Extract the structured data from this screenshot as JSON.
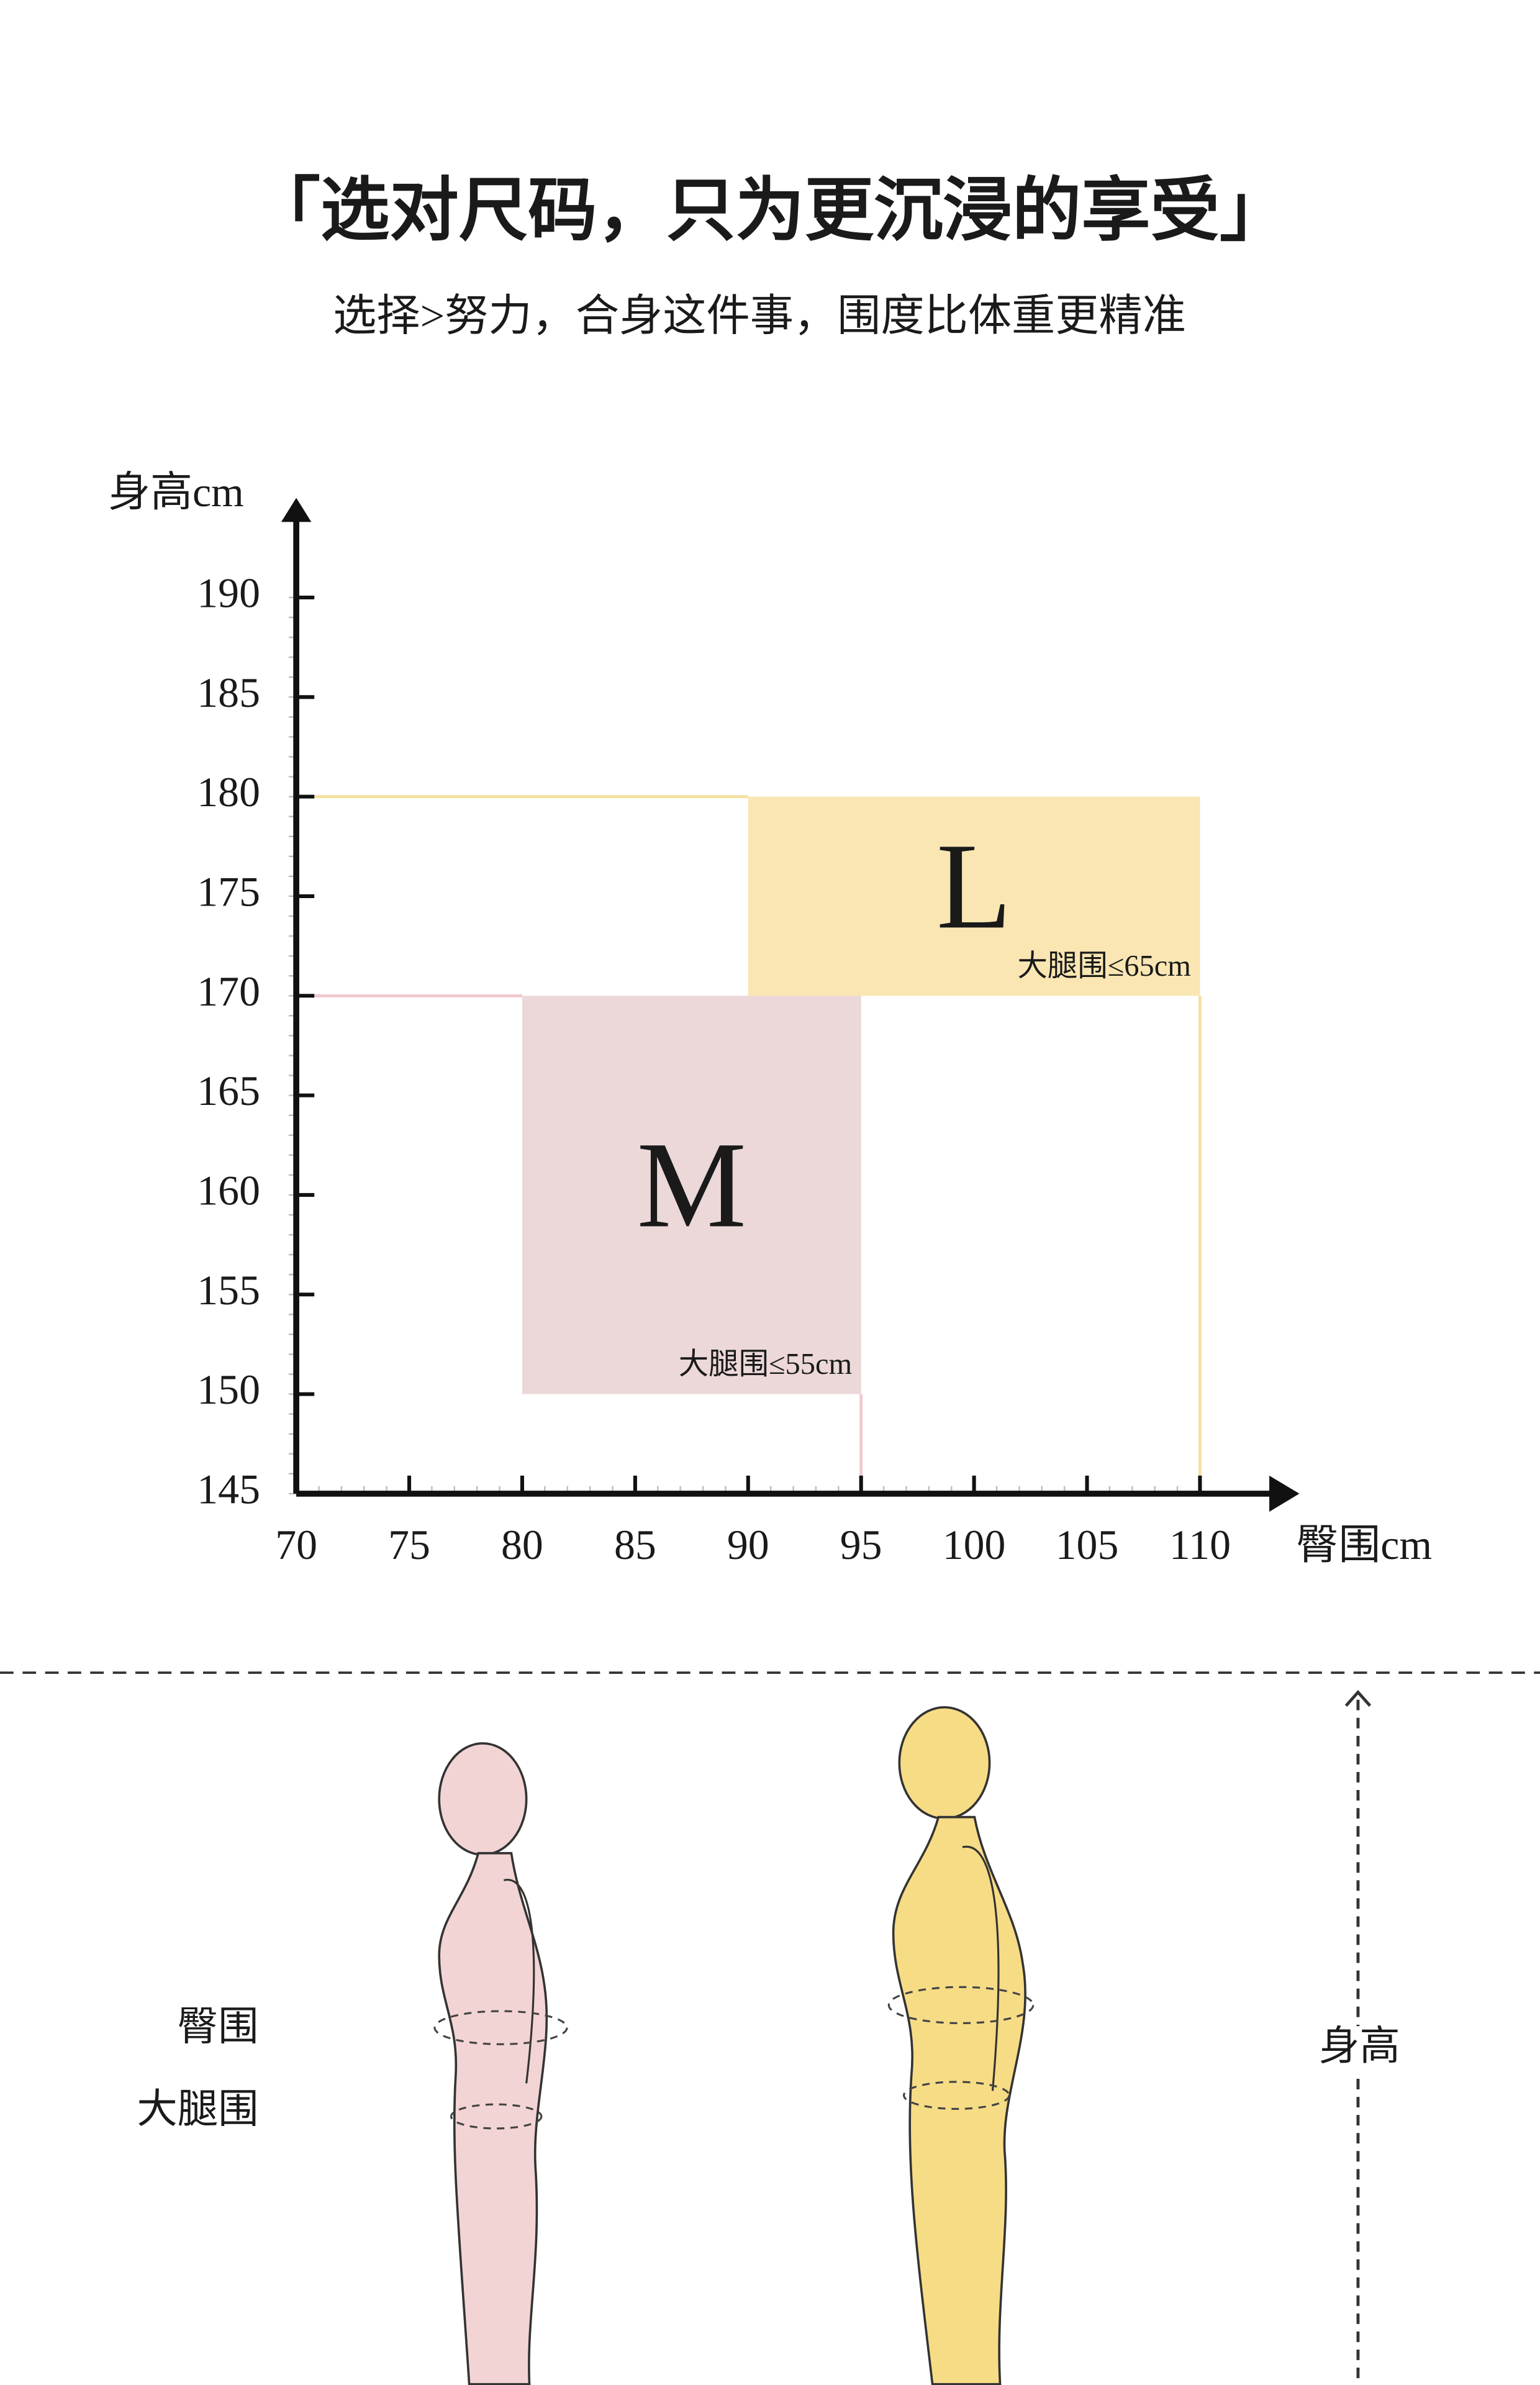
{
  "header": {
    "title": "「选对尺码，只为更沉浸的享受」",
    "subtitle": "选择>努力，合身这件事，围度比体重更精准"
  },
  "chart_data": {
    "type": "region",
    "x_label": "臀围cm",
    "y_label": "身高cm",
    "xlim": [
      70,
      114
    ],
    "ylim": [
      145,
      195
    ],
    "xticks": [
      70,
      75,
      80,
      85,
      90,
      95,
      100,
      105,
      110
    ],
    "yticks": [
      145,
      150,
      155,
      160,
      165,
      170,
      175,
      180,
      185,
      190
    ],
    "series": [
      {
        "name": "M",
        "color": "#ecd8d8",
        "line_color": "#f0c8cc",
        "x": [
          80,
          95
        ],
        "y": [
          150,
          170
        ],
        "note": "大腿围≤55cm"
      },
      {
        "name": "L",
        "color": "#f9e6b2",
        "line_color": "#f5dfa0",
        "x": [
          90,
          110
        ],
        "y": [
          170,
          180
        ],
        "note": "大腿围≤65cm"
      }
    ]
  },
  "figure": {
    "labels": [
      "臀围",
      "大腿围"
    ],
    "height_label": "身高"
  }
}
